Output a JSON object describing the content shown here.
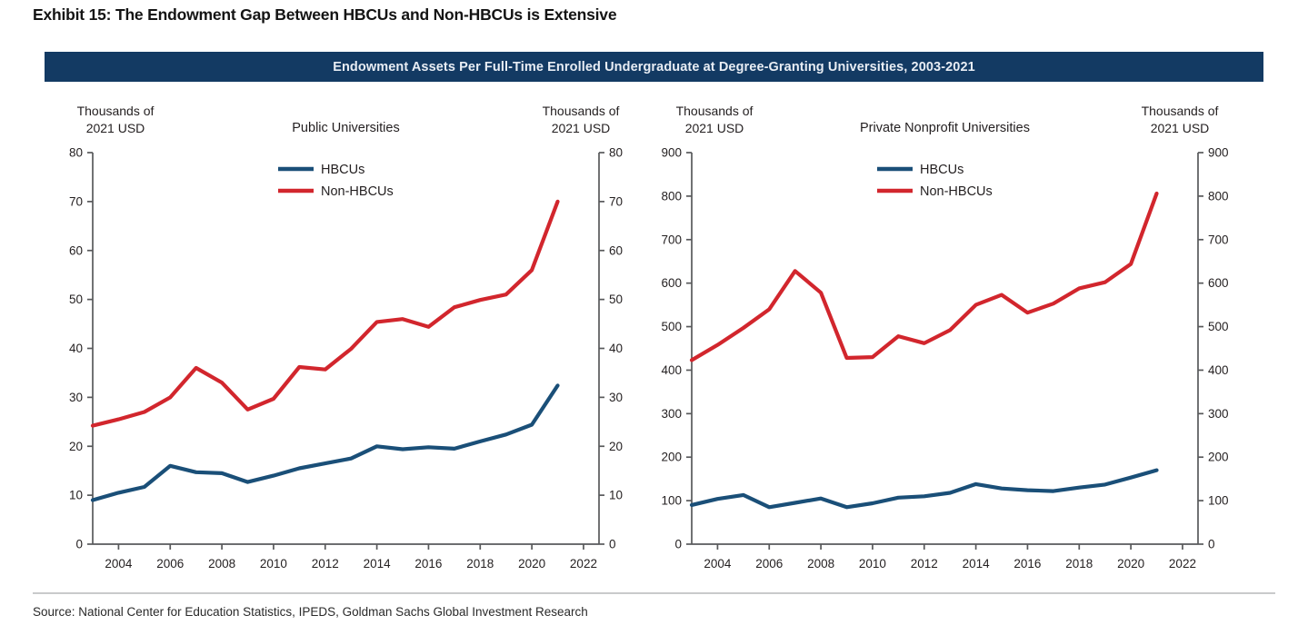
{
  "page": {
    "exhibit_title": "Exhibit 15: The Endowment Gap Between HBCUs and Non-HBCUs is Extensive",
    "banner_title": "Endowment Assets Per Full-Time Enrolled Undergraduate at Degree-Granting Universities, 2003-2021",
    "source_text": "Source: National Center for Education Statistics, IPEDS, Goldman Sachs Global Investment Research"
  },
  "colors": {
    "banner_bg": "#133a63",
    "banner_text": "#e8edf4",
    "hbcu_line": "#1a4f78",
    "non_hbcu_line": "#d2262d",
    "axis": "#58595b",
    "tick_label": "#231f20"
  },
  "chart_data": [
    {
      "type": "line",
      "title": "Public Universities",
      "unit_label_left": "Thousands of 2021 USD",
      "unit_label_right": "Thousands of 2021 USD",
      "x": [
        2003,
        2004,
        2005,
        2006,
        2007,
        2008,
        2009,
        2010,
        2011,
        2012,
        2013,
        2014,
        2015,
        2016,
        2017,
        2018,
        2019,
        2020,
        2021
      ],
      "xticks": [
        2004,
        2006,
        2008,
        2010,
        2012,
        2014,
        2016,
        2018,
        2020,
        2022
      ],
      "xlim": [
        2003,
        2022.6
      ],
      "ylim": [
        0,
        80
      ],
      "ytick_step": 10,
      "grid": false,
      "legend_position": "top-center-inside",
      "series": [
        {
          "name": "HBCUs",
          "color_key": "hbcu_line",
          "values": [
            9,
            10.5,
            11.7,
            16,
            14.7,
            14.5,
            12.7,
            14,
            15.5,
            16.5,
            17.5,
            20,
            19.4,
            19.8,
            19.5,
            21,
            22.4,
            24.4,
            32.4
          ]
        },
        {
          "name": "Non-HBCUs",
          "color_key": "non_hbcu_line",
          "values": [
            24.2,
            25.5,
            27,
            30,
            36,
            33,
            27.5,
            29.7,
            36.2,
            35.7,
            39.9,
            45.4,
            46,
            44.4,
            48.4,
            49.9,
            51,
            56,
            70
          ]
        }
      ]
    },
    {
      "type": "line",
      "title": "Private Nonprofit Universities",
      "unit_label_left": "Thousands of 2021 USD",
      "unit_label_right": "Thousands of 2021 USD",
      "x": [
        2003,
        2004,
        2005,
        2006,
        2007,
        2008,
        2009,
        2010,
        2011,
        2012,
        2013,
        2014,
        2015,
        2016,
        2017,
        2018,
        2019,
        2020,
        2021
      ],
      "xticks": [
        2004,
        2006,
        2008,
        2010,
        2012,
        2014,
        2016,
        2018,
        2020,
        2022
      ],
      "xlim": [
        2003,
        2022.6
      ],
      "ylim": [
        0,
        900
      ],
      "ytick_step": 100,
      "grid": false,
      "legend_position": "top-center-inside",
      "series": [
        {
          "name": "HBCUs",
          "color_key": "hbcu_line",
          "values": [
            90,
            104,
            113,
            85,
            95,
            105,
            85,
            94,
            107,
            110,
            118,
            138,
            128,
            124,
            122,
            130,
            137,
            153,
            170
          ]
        },
        {
          "name": "Non-HBCUs",
          "color_key": "non_hbcu_line",
          "values": [
            423,
            458,
            497,
            540,
            628,
            578,
            428,
            430,
            478,
            462,
            492,
            550,
            573,
            532,
            553,
            588,
            602,
            644,
            806
          ]
        }
      ]
    }
  ]
}
